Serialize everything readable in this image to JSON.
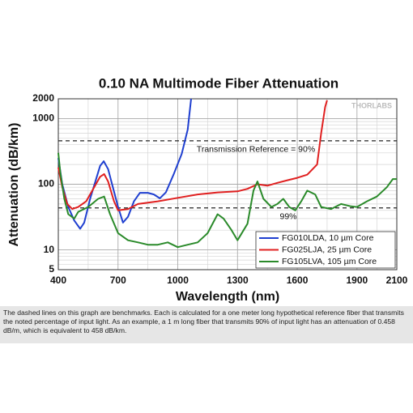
{
  "chart_data": {
    "type": "line",
    "title": "0.10 NA Multimode Fiber Attenuation",
    "xlabel": "Wavelength (nm)",
    "ylabel": "Attenuation (dB/km)",
    "watermark": "THORLABS",
    "xlim": [
      400,
      2100
    ],
    "xticks": [
      400,
      700,
      1000,
      1300,
      1600,
      1900,
      2100
    ],
    "ylim": [
      5,
      2000
    ],
    "yticks": [
      5,
      10,
      100,
      1000,
      2000
    ],
    "yscale": "log",
    "grid": true,
    "legend": "lower right",
    "reference_lines": [
      {
        "value": 458,
        "label": "Transmission Reference = 90%"
      },
      {
        "value": 43.6,
        "label": "99%"
      }
    ],
    "series": [
      {
        "name": "FG010LDA, 10 µm Core",
        "color": "#1f3fd0",
        "x": [
          400,
          420,
          450,
          480,
          510,
          530,
          560,
          590,
          610,
          628,
          650,
          670,
          700,
          725,
          750,
          780,
          810,
          850,
          880,
          910,
          940,
          980,
          1020,
          1050,
          1067
        ],
        "values": [
          250,
          100,
          45,
          28,
          21,
          26,
          60,
          120,
          190,
          224,
          170,
          100,
          45,
          26,
          32,
          55,
          74,
          74,
          70,
          61,
          75,
          143,
          290,
          680,
          2000
        ]
      },
      {
        "name": "FG025LJA, 25 µm Core",
        "color": "#e02020",
        "x": [
          400,
          420,
          445,
          470,
          500,
          540,
          580,
          610,
          630,
          650,
          680,
          700,
          750,
          800,
          900,
          1000,
          1100,
          1200,
          1300,
          1350,
          1400,
          1450,
          1500,
          1550,
          1600,
          1650,
          1700,
          1720,
          1740,
          1750
        ],
        "values": [
          180,
          90,
          50,
          42,
          45,
          55,
          90,
          130,
          143,
          110,
          55,
          40,
          42,
          50,
          55,
          62,
          70,
          75,
          78,
          85,
          100,
          95,
          105,
          115,
          125,
          140,
          200,
          600,
          1500,
          1900
        ]
      },
      {
        "name": "FG105LVA, 105 µm Core",
        "color": "#2a8a2a",
        "x": [
          400,
          410,
          430,
          450,
          480,
          500,
          550,
          600,
          630,
          660,
          700,
          750,
          800,
          850,
          900,
          950,
          1000,
          1050,
          1100,
          1150,
          1200,
          1230,
          1270,
          1300,
          1350,
          1380,
          1400,
          1430,
          1470,
          1500,
          1530,
          1560,
          1590,
          1620,
          1650,
          1690,
          1720,
          1770,
          1820,
          1870,
          1900,
          1950,
          2000,
          2050,
          2080,
          2100
        ],
        "values": [
          300,
          150,
          60,
          35,
          30,
          38,
          45,
          60,
          65,
          35,
          18,
          14,
          13,
          12,
          12,
          13,
          11,
          12,
          13,
          18,
          35,
          30,
          20,
          14,
          25,
          80,
          110,
          60,
          45,
          50,
          60,
          45,
          40,
          55,
          80,
          70,
          45,
          42,
          50,
          46,
          45,
          55,
          65,
          90,
          120,
          120
        ]
      }
    ]
  },
  "caption": "The dashed lines on this graph are benchmarks. Each is calculated for a one meter long hypothetical reference fiber that transmits the noted percentage of input light. As an example, a 1 m long fiber that transmits 90% of input light has an attenuation of 0.458 dB/m, which is equivalent to 458 dB/km."
}
